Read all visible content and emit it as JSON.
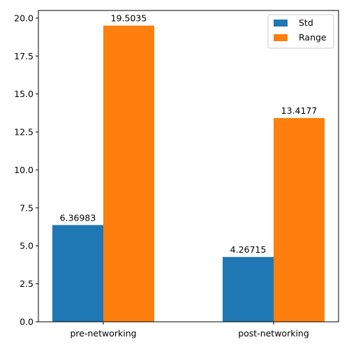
{
  "chart_data": {
    "type": "bar",
    "categories": [
      "pre-networking",
      "post-networking"
    ],
    "series": [
      {
        "name": "Std",
        "values": [
          6.36983,
          4.26715
        ],
        "color": "#1f77b4",
        "labels": [
          "6.36983",
          "4.26715"
        ]
      },
      {
        "name": "Range",
        "values": [
          19.5035,
          13.4177
        ],
        "color": "#ff7f0e",
        "labels": [
          "19.5035",
          "13.4177"
        ]
      }
    ],
    "title": "",
    "xlabel": "",
    "ylabel": "",
    "ylim": [
      0,
      20.5
    ],
    "yticks": [
      0.0,
      2.5,
      5.0,
      7.5,
      10.0,
      12.5,
      15.0,
      17.5,
      20.0
    ],
    "ytick_labels": [
      "0.0",
      "2.5",
      "5.0",
      "7.5",
      "10.0",
      "12.5",
      "15.0",
      "17.5",
      "20.0"
    ],
    "legend_position": "top-right",
    "grid": false
  }
}
